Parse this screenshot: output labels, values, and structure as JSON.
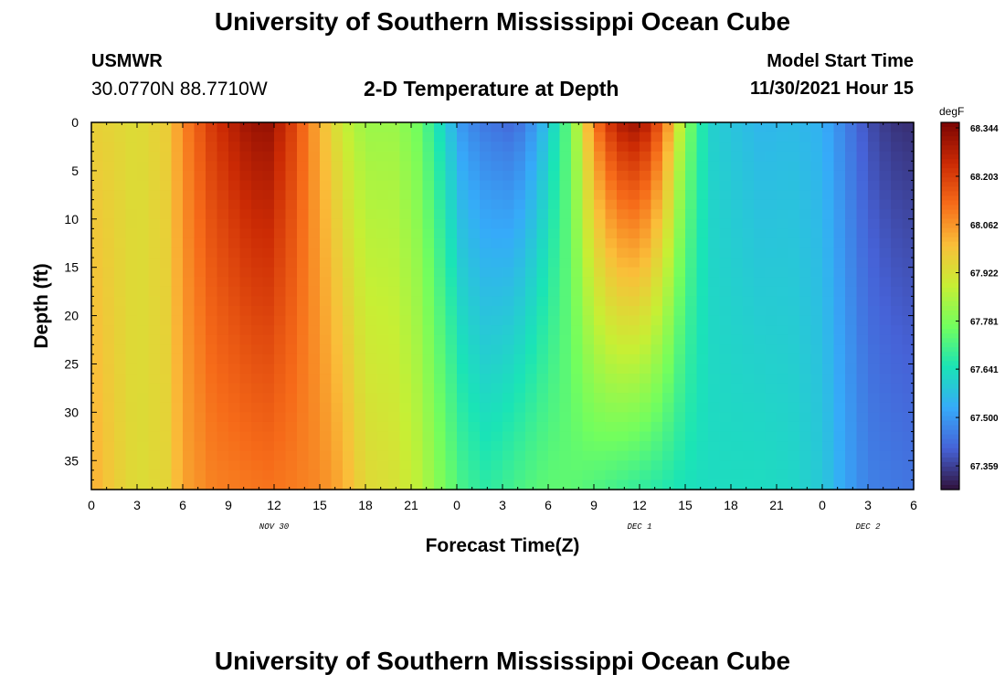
{
  "header": {
    "title": "University of Southern Mississippi Ocean Cube",
    "station": "USMWR",
    "coords": "30.0770N  88.7710W",
    "subtitle": "2-D Temperature at Depth",
    "model_start_label": "Model Start Time",
    "model_start_value": "11/30/2021 Hour 15"
  },
  "footer": {
    "title": "University of Southern Mississippi Ocean Cube"
  },
  "chart_data": {
    "type": "heatmap",
    "xlabel": "Forecast Time(Z)",
    "ylabel": "Depth (ft)",
    "xlim": [
      0,
      54
    ],
    "ylim": [
      0,
      38
    ],
    "y_inverted": true,
    "x_tick_labels": [
      "0",
      "3",
      "6",
      "9",
      "12",
      "15",
      "18",
      "21",
      "0",
      "3",
      "6",
      "9",
      "12",
      "15",
      "18",
      "21",
      "0",
      "3",
      "6"
    ],
    "y_ticks": [
      0,
      5,
      10,
      15,
      20,
      25,
      30,
      35
    ],
    "date_labels": [
      {
        "x": 12,
        "text": "NOV 30"
      },
      {
        "x": 36,
        "text": "DEC 1"
      },
      {
        "x": 51,
        "text": "DEC 2"
      }
    ],
    "colorbar": {
      "unit": "degF",
      "ticks": [
        "68.344",
        "68.203",
        "68.062",
        "67.922",
        "67.781",
        "67.641",
        "67.500",
        "67.359"
      ],
      "min": 67.29,
      "max": 68.36,
      "colors": [
        "#30123b",
        "#4662d7",
        "#36aaf9",
        "#1ae4b6",
        "#72fe5e",
        "#c7ef34",
        "#fabe39",
        "#f66b19",
        "#cb2a04",
        "#7a0403"
      ]
    },
    "time_profile": {
      "x": [
        0,
        1.5,
        3,
        5,
        6,
        8,
        10,
        11.5,
        13,
        15,
        16.5,
        18,
        20,
        21.5,
        23,
        24.5,
        26,
        27.5,
        28.5,
        30,
        31.5,
        33,
        34.5,
        36,
        37.5,
        39,
        40.5,
        42,
        44,
        46,
        48,
        49.5,
        51,
        52.5,
        54
      ],
      "top": [
        67.96,
        67.95,
        67.93,
        67.97,
        68.08,
        68.22,
        68.3,
        68.33,
        68.22,
        68.02,
        67.89,
        67.82,
        67.82,
        67.76,
        67.62,
        67.48,
        67.44,
        67.42,
        67.45,
        67.58,
        67.76,
        68.1,
        68.28,
        68.32,
        68.15,
        67.8,
        67.61,
        67.58,
        67.55,
        67.56,
        67.54,
        67.46,
        67.38,
        67.34,
        67.33
      ],
      "bottom": [
        68.03,
        67.97,
        67.93,
        67.95,
        68.04,
        68.09,
        68.1,
        68.11,
        68.1,
        68.08,
        68.03,
        67.94,
        67.92,
        67.87,
        67.78,
        67.7,
        67.67,
        67.7,
        67.72,
        67.74,
        67.74,
        67.72,
        67.7,
        67.68,
        67.66,
        67.64,
        67.63,
        67.63,
        67.63,
        67.62,
        67.59,
        67.52,
        67.46,
        67.45,
        67.44
      ]
    }
  }
}
